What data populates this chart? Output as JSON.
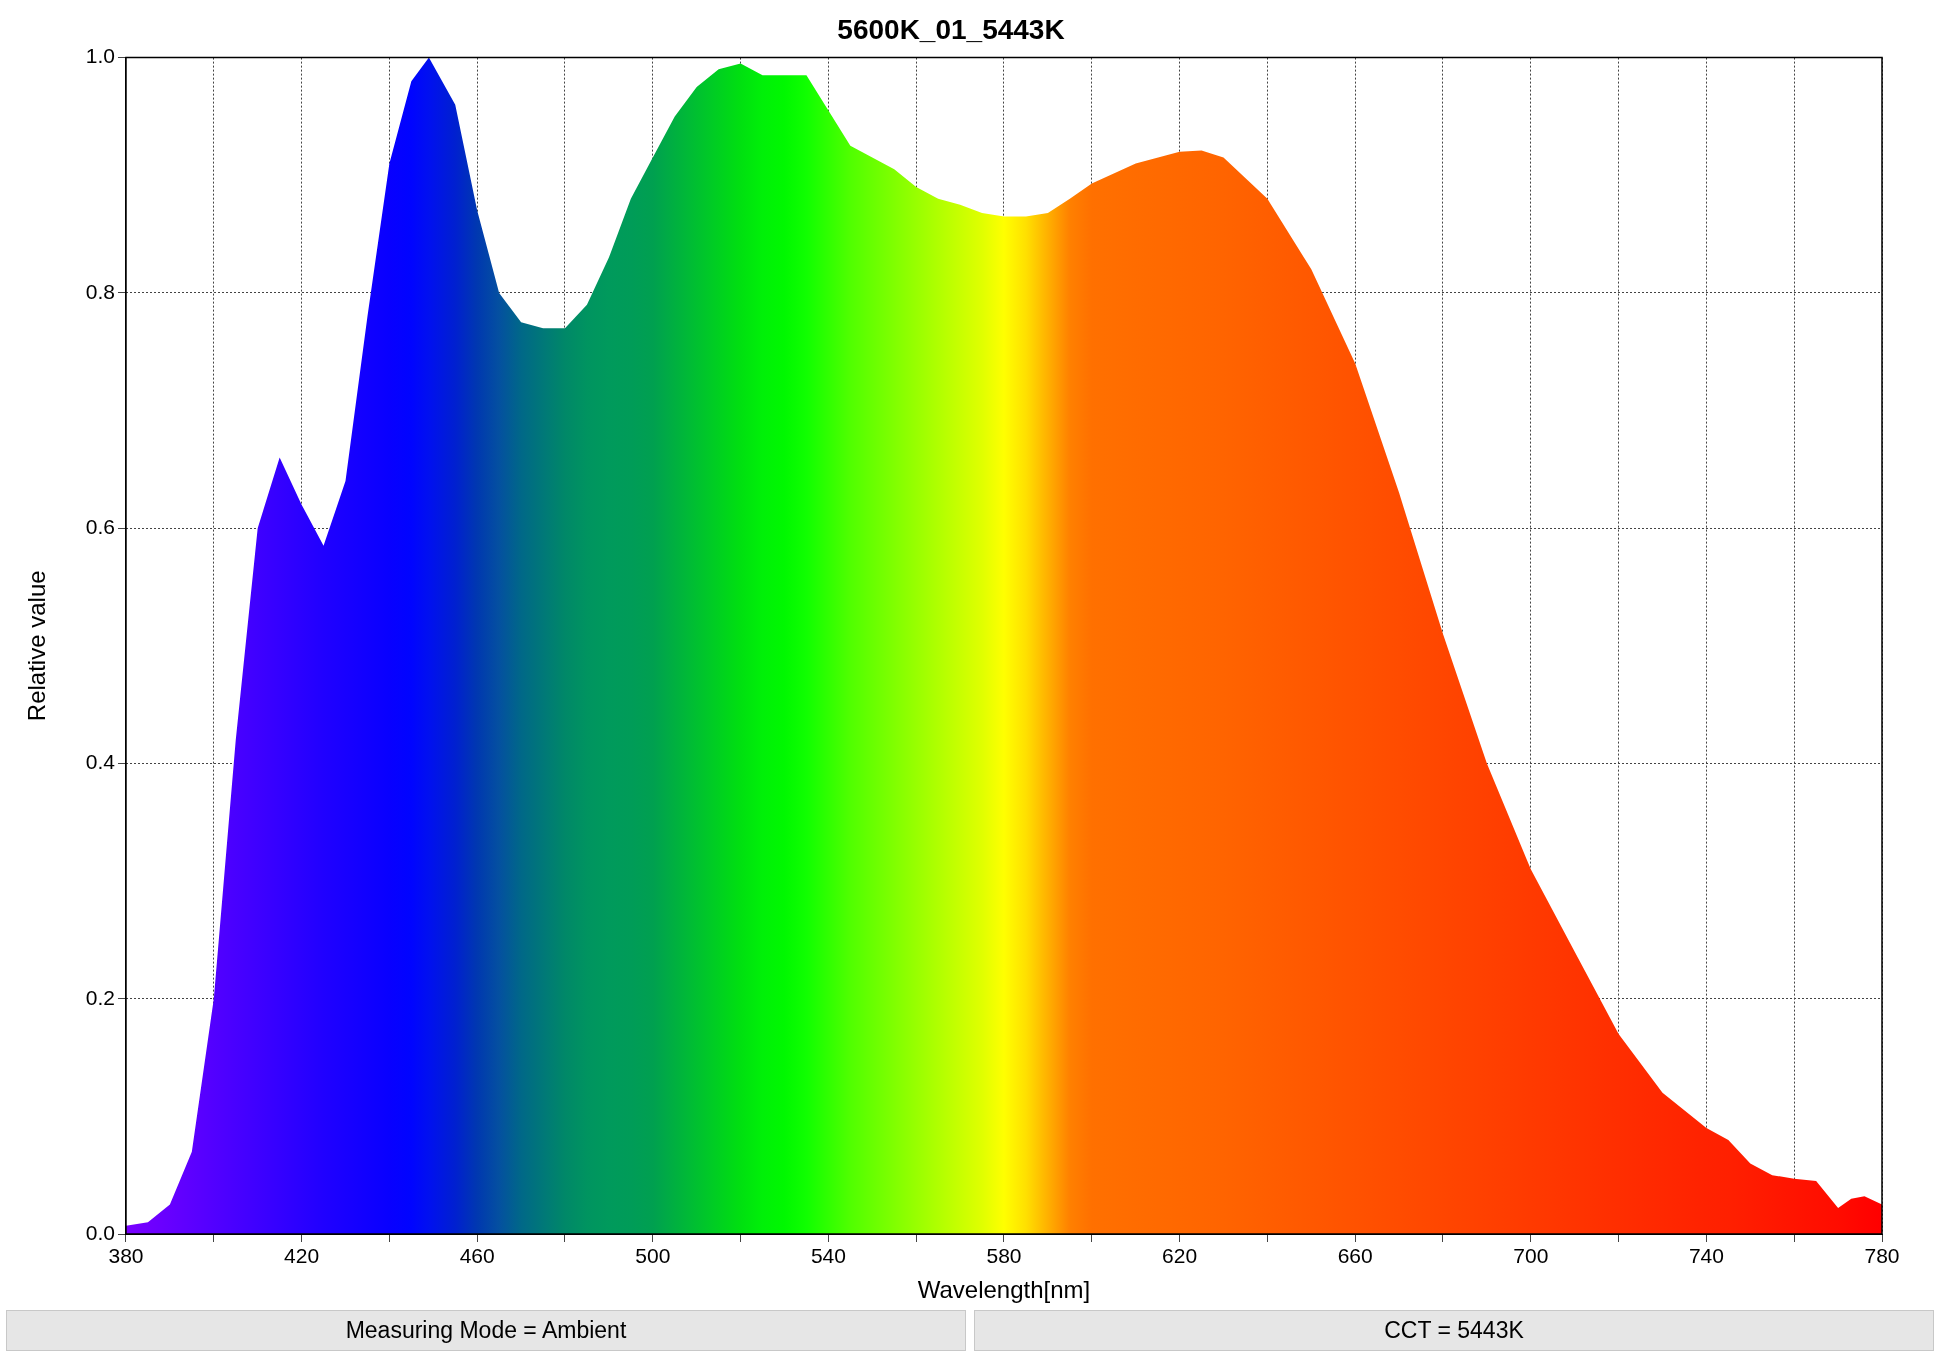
{
  "chart_data": {
    "type": "area",
    "title": "5600K_01_5443K",
    "xlabel": "Wavelength[nm]",
    "ylabel": "Relative value",
    "x": [
      380,
      385,
      390,
      395,
      400,
      405,
      410,
      415,
      420,
      425,
      430,
      435,
      440,
      445,
      449,
      455,
      460,
      465,
      470,
      475,
      480,
      485,
      490,
      495,
      500,
      505,
      510,
      515,
      520,
      525,
      530,
      535,
      540,
      545,
      550,
      555,
      560,
      565,
      570,
      575,
      580,
      585,
      590,
      595,
      600,
      610,
      620,
      625,
      630,
      640,
      650,
      660,
      670,
      680,
      690,
      700,
      710,
      720,
      730,
      740,
      745,
      750,
      755,
      760,
      765,
      770,
      773,
      776,
      780
    ],
    "values": [
      0.007,
      0.01,
      0.025,
      0.07,
      0.2,
      0.42,
      0.6,
      0.66,
      0.62,
      0.585,
      0.64,
      0.78,
      0.91,
      0.98,
      1.0,
      0.96,
      0.87,
      0.8,
      0.775,
      0.77,
      0.77,
      0.79,
      0.83,
      0.88,
      0.915,
      0.95,
      0.975,
      0.99,
      0.995,
      0.985,
      0.985,
      0.985,
      0.955,
      0.925,
      0.915,
      0.905,
      0.89,
      0.88,
      0.875,
      0.868,
      0.865,
      0.865,
      0.868,
      0.88,
      0.893,
      0.91,
      0.92,
      0.921,
      0.915,
      0.88,
      0.82,
      0.74,
      0.63,
      0.51,
      0.4,
      0.31,
      0.24,
      0.17,
      0.12,
      0.09,
      0.08,
      0.06,
      0.05,
      0.047,
      0.045,
      0.022,
      0.03,
      0.032,
      0.025
    ],
    "colors": [
      "#7a00ff",
      "#7000ff",
      "#6600ff",
      "#5c00ff",
      "#5200ff",
      "#4800ff",
      "#3e00ff",
      "#3400ff",
      "#2a00ff",
      "#2000ff",
      "#1800ff",
      "#1000ff",
      "#0800ff",
      "#0004ff",
      "#0010f0",
      "#0020d0",
      "#0038b0",
      "#0450a0",
      "#006888",
      "#007878",
      "#008868",
      "#009460",
      "#009a5c",
      "#009c58",
      "#00a050",
      "#00b040",
      "#00c030",
      "#00d020",
      "#00e010",
      "#00f008",
      "#00f800",
      "#10ff00",
      "#30ff00",
      "#50ff00",
      "#68ff00",
      "#80ff00",
      "#98ff00",
      "#b0ff00",
      "#c8ff00",
      "#e0ff00",
      "#ffff00",
      "#ffe000",
      "#ffb000",
      "#ff8000",
      "#ff7000",
      "#ff6c00",
      "#ff6800",
      "#ff6600",
      "#ff6400",
      "#ff5e00",
      "#ff5800",
      "#ff5200",
      "#ff4c00",
      "#ff4600",
      "#ff4000",
      "#ff3a00",
      "#ff3400",
      "#ff2e00",
      "#ff2800",
      "#ff2200",
      "#ff2000",
      "#ff1c00",
      "#ff1800",
      "#ff1400",
      "#ff1000",
      "#ff0c00",
      "#ff0800",
      "#ff0400",
      "#ff0000"
    ],
    "xlim": [
      380,
      780
    ],
    "xticks": [
      380,
      {
        "value": 400,
        "label": null
      },
      420,
      {
        "value": 440,
        "label": null
      },
      460,
      {
        "value": 480,
        "label": null
      },
      500,
      {
        "value": 520,
        "label": null
      },
      540,
      {
        "value": 560,
        "label": null
      },
      580,
      {
        "value": 600,
        "label": null
      },
      620,
      {
        "value": 640,
        "label": null
      },
      660,
      {
        "value": 680,
        "label": null
      },
      700,
      {
        "value": 720,
        "label": null
      },
      740,
      {
        "value": 760,
        "label": null
      },
      780
    ],
    "ylim": [
      0,
      1
    ],
    "yticks": [
      {
        "value": 0,
        "label": "0.0"
      },
      {
        "value": 0.2,
        "label": "0.2"
      },
      {
        "value": 0.4,
        "label": "0.4"
      },
      {
        "value": 0.6,
        "label": "0.6"
      },
      {
        "value": 0.8,
        "label": "0.8"
      },
      {
        "value": 1,
        "label": "1.0"
      }
    ],
    "grid": true,
    "line_style": "dotted",
    "annotations": [
      "Measuring Mode = Ambient",
      "CCT = 5443K"
    ]
  }
}
